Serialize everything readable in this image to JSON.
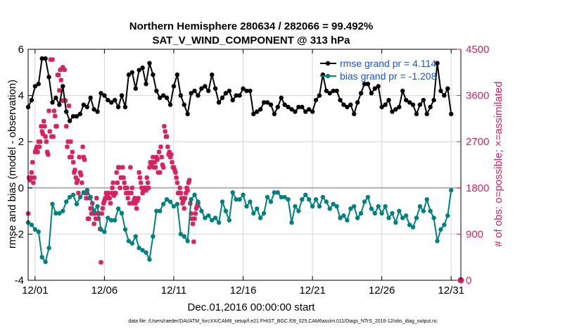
{
  "chart_data": {
    "type": "line",
    "title": "Northern Hemisphere 280634 / 282066 = 99.492%",
    "subtitle": "SAT_V_WIND_COMPONENT @ 313 hPa",
    "xlabel": "Dec.01,2016 00:00:00 start",
    "ylabel_left": "rmse and bias (model - observation)",
    "ylabel_right": "# of obs: o=possible; ×=assimilated",
    "footer": "data file: /Users/raeder/DAI/ATM_forcXX/CAM6_setup/f.e21.FHIST_BGC.f09_025.CAM6assim.011/Diags_NTrS_2016-12/obs_diag_output.nc",
    "xlim": [
      0.5,
      31.7
    ],
    "ylim_left": [
      -4,
      6
    ],
    "ylim_right": [
      0,
      4500
    ],
    "x_ticks": [
      1,
      6,
      11,
      16,
      21,
      26,
      31
    ],
    "x_tick_labels": [
      "12/01",
      "12/06",
      "12/11",
      "12/16",
      "12/21",
      "12/26",
      "12/31"
    ],
    "y_ticks_left": [
      -4,
      -2,
      0,
      2,
      4,
      6
    ],
    "y_tick_labels_left": [
      "-4",
      "-2",
      "0",
      "2",
      "4",
      "6"
    ],
    "y_ticks_right": [
      0,
      900,
      1800,
      2700,
      3600,
      4500
    ],
    "y_tick_labels_right": [
      "0",
      "900",
      "1800",
      "2700",
      "3600",
      "4500"
    ],
    "x_start": 0.5,
    "x_step": 0.25,
    "legend": {
      "position": "top-right",
      "entries": [
        "rmse grand pr = 4.114",
        "bias grand pr = -1.208"
      ]
    },
    "colors": {
      "rmse": "#000000",
      "bias": "#00807f",
      "obs": "#d6225e",
      "legend_text": "#1a55d6",
      "zero_line": "#b0b0b0",
      "grid": "#d6d6d6"
    },
    "series": [
      {
        "name": "rmse",
        "values": [
          3.5,
          3.8,
          4.4,
          4.5,
          5.6,
          5.6,
          4.8,
          3.7,
          3.9,
          3.6,
          4.4,
          3.3,
          2.9,
          3.1,
          3.1,
          3.2,
          3.6,
          3.5,
          3.9,
          3.4,
          3.3,
          4.1,
          4.0,
          3.8,
          3.7,
          3.8,
          3.5,
          4.0,
          3.5,
          4.9,
          5.0,
          4.3,
          5.1,
          5.2,
          4.5,
          5.4,
          4.9,
          4.2,
          3.9,
          4.0,
          3.9,
          3.6,
          4.4,
          4.9,
          4.0,
          3.6,
          3.2,
          4.1,
          4.2,
          4.0,
          4.3,
          4.4,
          4.2,
          4.9,
          4.3,
          3.7,
          3.9,
          4.1,
          4.2,
          3.8,
          4.0,
          4.0,
          4.3,
          4.2,
          4.2,
          3.2,
          3.3,
          3.4,
          3.7,
          3.7,
          3.6,
          3.2,
          3.5,
          3.9,
          3.6,
          3.5,
          3.4,
          3.3,
          3.5,
          3.5,
          3.3,
          3.4,
          3.3,
          3.8,
          4.0,
          4.9,
          4.2,
          4.1,
          4.2,
          4.2,
          3.8,
          3.6,
          3.5,
          3.6,
          3.2,
          3.7,
          4.1,
          4.5,
          4.5,
          4.1,
          4.3,
          4.4,
          3.5,
          3.6,
          3.8,
          3.3,
          3.4,
          3.5,
          4.2,
          3.8,
          3.7,
          3.6,
          3.2,
          3.6,
          3.8,
          3.2,
          3.5,
          3.8,
          5.4,
          4.2,
          4.0,
          4.3,
          3.2
        ]
      },
      {
        "name": "bias",
        "values": [
          -1.5,
          -1.6,
          -1.8,
          -1.9,
          -3.0,
          -3.2,
          -2.6,
          -0.7,
          -1.1,
          -1.1,
          -1.0,
          -0.6,
          -0.4,
          -0.3,
          -0.7,
          -0.4,
          -0.2,
          -0.1,
          -0.4,
          -1.0,
          -0.8,
          -1.8,
          -1.9,
          -1.3,
          -1.4,
          -1.4,
          -0.9,
          -1.1,
          -1.8,
          -2.3,
          -2.4,
          -2.1,
          -2.6,
          -2.7,
          -2.8,
          -3.1,
          -2.1,
          -1.0,
          -1.0,
          -0.7,
          -0.5,
          -0.6,
          -0.8,
          -0.7,
          -2.0,
          -2.1,
          -2.3,
          -0.5,
          -0.3,
          -0.6,
          -1.0,
          -1.3,
          -1.2,
          -1.4,
          -1.3,
          -1.5,
          -0.6,
          -1.0,
          -1.4,
          -0.2,
          -0.5,
          -0.5,
          -0.3,
          -0.8,
          -0.6,
          -1.1,
          -0.9,
          -1.3,
          -1.1,
          -0.4,
          -0.6,
          -0.2,
          -0.2,
          -0.4,
          -0.4,
          -0.5,
          -1.5,
          -0.8,
          -1.0,
          -0.5,
          -0.3,
          -0.5,
          -0.8,
          -0.5,
          -0.8,
          -0.4,
          -0.6,
          -0.9,
          -0.7,
          -0.8,
          -1.3,
          -1.2,
          -1.4,
          -0.9,
          -0.8,
          -1.3,
          -1.1,
          -0.6,
          -0.4,
          -0.9,
          -1.1,
          -0.8,
          -1.1,
          -0.8,
          -1.3,
          -1.1,
          -1.5,
          -1.0,
          -1.3,
          -1.2,
          -1.6,
          -1.7,
          -1.3,
          -0.8,
          -1.0,
          -0.5,
          -1.0,
          -1.3,
          -2.3,
          -1.8,
          -1.6,
          -1.2,
          -0.1
        ]
      },
      {
        "name": "obs_assimilated",
        "values": [
          1300,
          2000,
          1950,
          2000,
          2100,
          2300,
          1900,
          2000,
          2500,
          2550,
          2600,
          2500,
          2700,
          2600,
          2700,
          3000,
          2900,
          2850,
          3100,
          3000,
          2800,
          2700,
          2500,
          2450,
          3300,
          2900,
          4300,
          2800,
          4300,
          2800,
          3300,
          3200,
          3000,
          3000,
          4000,
          4000,
          3700,
          4100,
          3900,
          3500,
          4150,
          3500,
          4100,
          3500,
          3000,
          2600,
          2700,
          3400,
          2400,
          2700,
          2400,
          2500,
          2300,
          2100,
          2150,
          2000,
          1900,
          1950,
          1700,
          2400,
          2100,
          2050,
          1900,
          2600,
          2400,
          2350,
          1700,
          1600,
          1700,
          1200,
          1200,
          1600,
          1400,
          1300,
          1500,
          1300,
          1100,
          1300,
          1200,
          1600,
          1300,
          1200,
          1300,
          1000,
          350,
          1300,
          1400,
          1500,
          1550,
          1600,
          1700,
          1650,
          1700,
          1600,
          1600,
          1500,
          1700,
          1800,
          1900,
          1650,
          1700,
          1700,
          2100,
          1900,
          2200,
          2200,
          1800,
          2000,
          2000,
          2200,
          2000,
          1900,
          1800,
          1700,
          1800,
          1600,
          1700,
          1500,
          2200,
          1700,
          1800,
          1500,
          1550,
          1600,
          1500,
          1400,
          1550,
          1600,
          2100,
          2000,
          1900,
          1800,
          1700,
          1750,
          1800,
          1800,
          1750,
          2000,
          1900,
          1800,
          2200,
          2300,
          2250,
          2300,
          2400,
          2200,
          2300,
          2200,
          2400,
          2350,
          2100,
          2500,
          2100,
          2600,
          2400,
          2250,
          2200,
          3000,
          2900,
          2800,
          2800,
          2600,
          2450,
          2500,
          2400,
          2450,
          2300,
          2200,
          2200,
          2150,
          2100,
          2000,
          1900,
          1700,
          1700,
          1800,
          1700,
          1600,
          1500,
          1550,
          1400,
          1600,
          1700,
          1800,
          1750,
          1900,
          1950,
          1500,
          1300,
          1200,
          1100,
          750,
          1200,
          1300,
          1400,
          1450,
          1500
        ]
      },
      {
        "name": "obs_possible",
        "values": [
          1300,
          2000,
          1950,
          2000,
          2100,
          2300,
          1900,
          2000,
          2500,
          2550,
          2600,
          2500,
          2700,
          2600,
          2700,
          3000,
          2900,
          2850,
          3100,
          3000,
          2800,
          2700,
          2500,
          2450,
          3300,
          2900,
          4300,
          2800,
          4300,
          2800,
          3300,
          3200,
          3000,
          3000,
          4000,
          4000,
          3700,
          4100,
          3900,
          3500,
          4150,
          3500,
          4100,
          3500,
          3000,
          2600,
          2700,
          3400,
          2400,
          2700,
          2400,
          2500,
          2300,
          2100,
          2150,
          2000,
          1900,
          1950,
          1700,
          2400,
          2100,
          2050,
          1900,
          2600,
          2400,
          2350,
          1700,
          1600,
          1700,
          1200,
          1200,
          1600,
          1400,
          1300,
          1500,
          1300,
          1100,
          1300,
          1200,
          1600,
          1300,
          1200,
          1300,
          1000,
          350,
          1300,
          1400,
          1500,
          1550,
          1600,
          1700,
          1650,
          1700,
          1600,
          1600,
          1500,
          1700,
          1800,
          1900,
          1650,
          1700,
          1700,
          2100,
          1900,
          2200,
          2200,
          1800,
          2000,
          2000,
          2200,
          2000,
          1900,
          1800,
          1700,
          1800,
          1600,
          1700,
          1500,
          2200,
          1700,
          1800,
          1500,
          1550,
          1600,
          1500,
          1400,
          1550,
          1600,
          2100,
          2000,
          1900,
          1800,
          1700,
          1750,
          1800,
          1800,
          1750,
          2000,
          1900,
          1800,
          2200,
          2300,
          2250,
          2300,
          2400,
          2200,
          2300,
          2200,
          2400,
          2350,
          2100,
          2500,
          2100,
          2600,
          2400,
          2250,
          2200,
          3000,
          2900,
          2800,
          2800,
          2600,
          2450,
          2500,
          2400,
          2450,
          2300,
          2200,
          2200,
          2150,
          2100,
          2000,
          1900,
          1700,
          1700,
          1800,
          1700,
          1600,
          1500,
          1550,
          1400,
          1600,
          1700,
          1800,
          1750,
          1900,
          1950,
          1500,
          1300,
          1200,
          1100,
          750,
          1200,
          1300,
          1400,
          1450,
          1500
        ]
      }
    ]
  }
}
